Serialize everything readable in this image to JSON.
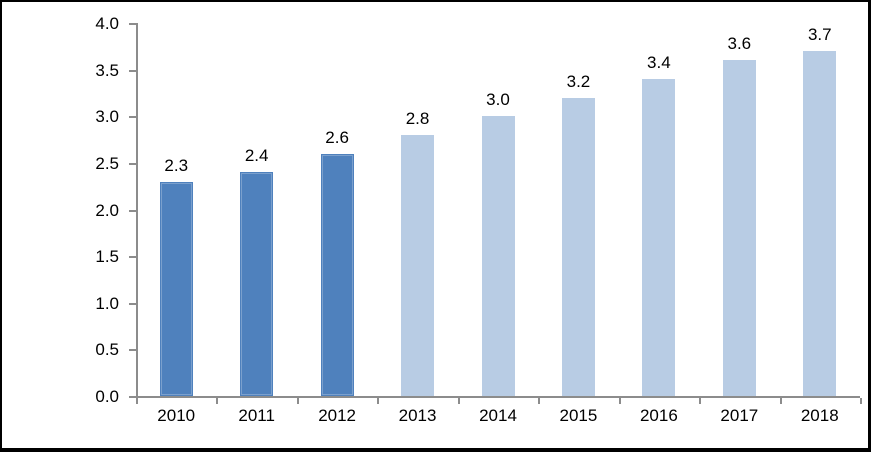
{
  "chart_data": {
    "type": "bar",
    "title": "",
    "xlabel": "",
    "ylabel": "",
    "categories": [
      "2010",
      "2011",
      "2012",
      "2013",
      "2014",
      "2015",
      "2016",
      "2017",
      "2018"
    ],
    "values": [
      2.3,
      2.4,
      2.6,
      2.8,
      3.0,
      3.2,
      3.4,
      3.6,
      3.7
    ],
    "value_labels": [
      "2.3",
      "2.4",
      "2.6",
      "2.8",
      "3.0",
      "3.2",
      "3.4",
      "3.6",
      "3.7"
    ],
    "ylim": [
      0.0,
      4.0
    ],
    "ytick_step": 0.5,
    "ytick_labels": [
      "0.0",
      "0.5",
      "1.0",
      "1.5",
      "2.0",
      "2.5",
      "3.0",
      "3.5",
      "4.0"
    ],
    "grid": false,
    "legend": false,
    "colors": {
      "bar_dark_blue": "#4f81bd",
      "bar_light_blue": "#b8cce4",
      "axis_gray": "#8c8c8c",
      "label_black": "#000000",
      "background": "#ffffff",
      "frame_border": "#000000"
    },
    "bar_color_keys": [
      "bar_dark_blue",
      "bar_dark_blue",
      "bar_dark_blue",
      "bar_light_blue",
      "bar_light_blue",
      "bar_light_blue",
      "bar_light_blue",
      "bar_light_blue",
      "bar_light_blue"
    ]
  }
}
